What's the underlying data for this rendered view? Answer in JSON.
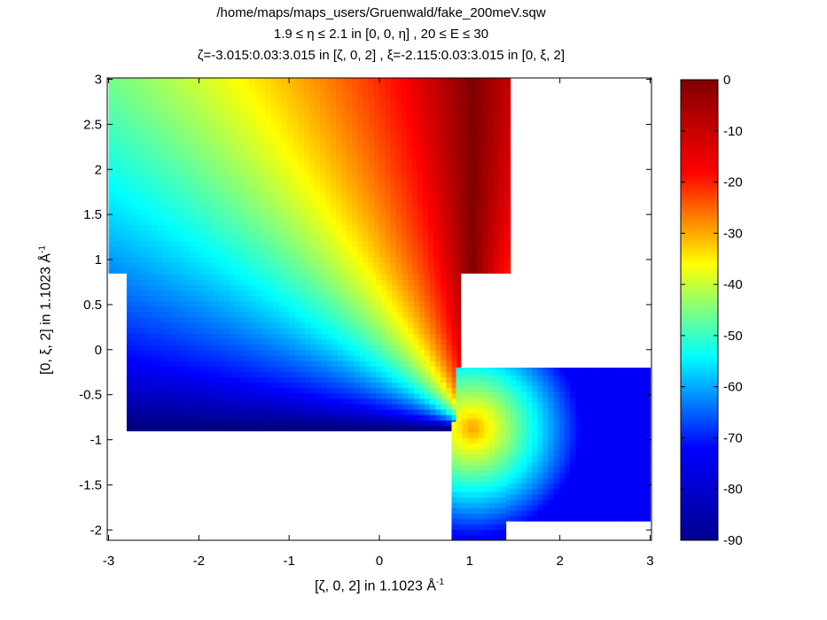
{
  "chart_data": {
    "type": "heatmap",
    "title_lines": [
      "/home/maps/maps_users/Gruenwald/fake_200meV.sqw",
      "1.9 ≤ η ≤ 2.1 in [0, 0, η] , 20 ≤ E ≤ 30",
      "ζ=-3.015:0.03:3.015 in [ζ, 0, 2] , ξ=-2.115:0.03:3.015 in [0, ξ, 2]"
    ],
    "xlabel": "[ζ, 0, 2] in 1.1023 Å",
    "xlabel_sup": "-1",
    "ylabel": "[0, ξ, 2] in 1.1023 Å",
    "ylabel_sup": "-1",
    "xlim": [
      -3.015,
      3.015
    ],
    "ylim": [
      -2.115,
      3.015
    ],
    "xticks": [
      -3,
      -2,
      -1,
      0,
      1,
      2,
      3
    ],
    "yticks": [
      -2,
      -1.5,
      -1,
      -0.5,
      0,
      0.5,
      1,
      1.5,
      2,
      2.5,
      3
    ],
    "colorbar": {
      "colormap": "jet",
      "range": [
        -90,
        0
      ],
      "ticks": [
        0,
        -10,
        -20,
        -30,
        -40,
        -50,
        -60,
        -70,
        -80,
        -90
      ]
    },
    "colormap_stops": [
      "#00008f",
      "#0000ff",
      "#00ffff",
      "#ffff00",
      "#ff0000",
      "#800000"
    ],
    "grid": false,
    "regions": [
      {
        "x": [
          -3.0,
          1.45
        ],
        "y_top": 3.015,
        "y_bottom": 0.85
      },
      {
        "x": [
          -2.8,
          0.9
        ],
        "y_top": 0.85,
        "y_bottom": -0.9
      },
      {
        "x": [
          0.85,
          3.0
        ],
        "y_top": -0.2,
        "y_bottom": -1.9
      },
      {
        "x": [
          0.8,
          1.4
        ],
        "y_top": -0.8,
        "y_bottom": -2.115
      }
    ]
  }
}
